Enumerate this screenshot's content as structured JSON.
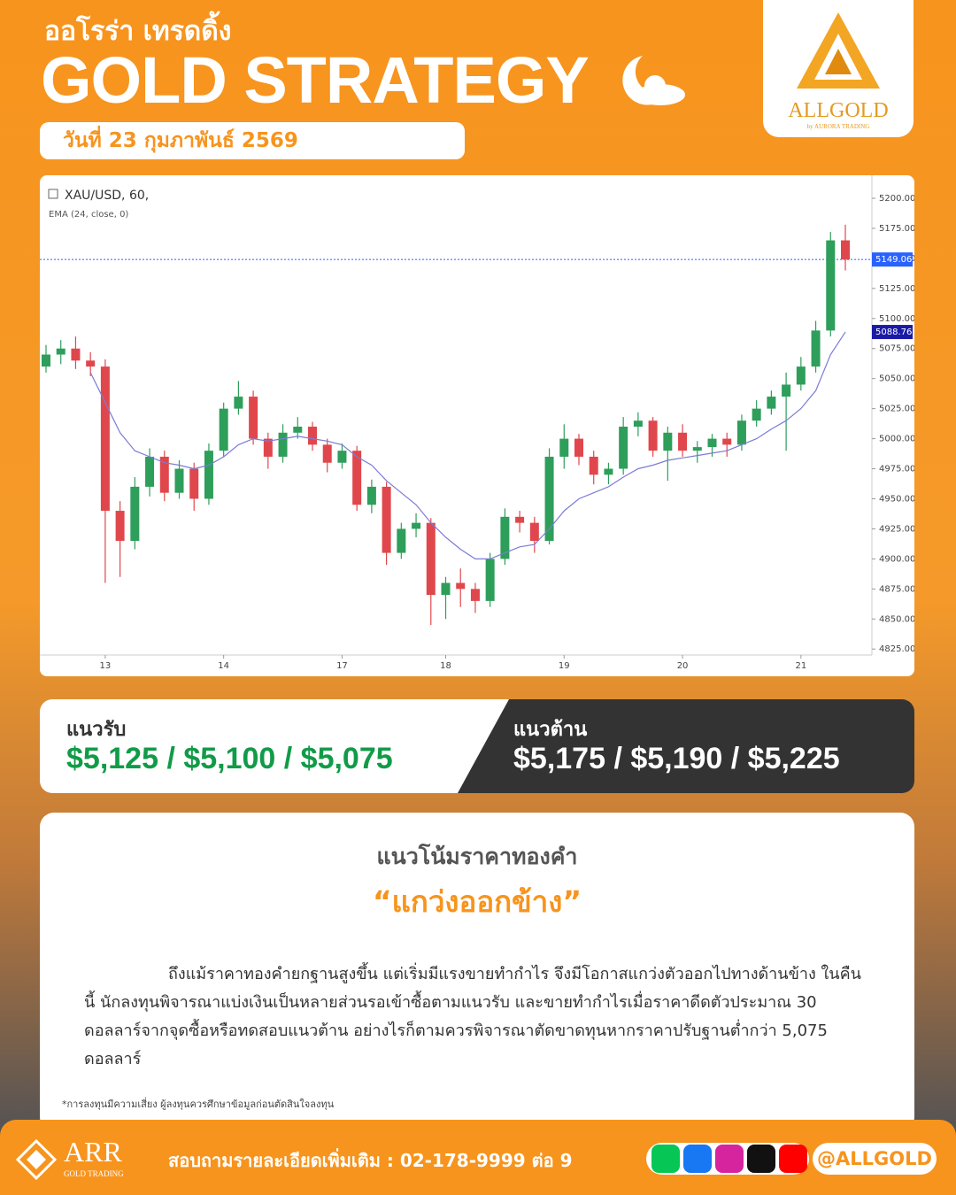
{
  "header": {
    "subtitle": "ออโรร่า เทรดดิ้ง",
    "title": "GOLD STRATEGY",
    "date": "วันที่ 23 กุมภาพันธ์ 2569"
  },
  "logo": {
    "name": "ALLGOLD",
    "tagline": "by AURORA TRADING"
  },
  "chart_data": {
    "type": "candlestick",
    "title": "XAU/USD, 60,",
    "categories": [
      null,
      null,
      null,
      null,
      "13",
      null,
      null,
      null,
      null,
      null,
      null,
      null,
      "14",
      null,
      null,
      null,
      null,
      null,
      null,
      null,
      "17",
      null,
      null,
      null,
      null,
      null,
      null,
      "18",
      null,
      null,
      null,
      null,
      null,
      null,
      null,
      "19",
      null,
      null,
      null,
      null,
      null,
      null,
      null,
      "20",
      null,
      null,
      null,
      null,
      null,
      null,
      null,
      "21",
      null,
      null,
      null
    ],
    "open": [
      5060,
      5070,
      5075,
      5065,
      5060,
      4940,
      4915,
      4960,
      4985,
      4955,
      4975,
      4950,
      4990,
      5025,
      5035,
      5000,
      4985,
      5005,
      5010,
      4995,
      4980,
      4990,
      4945,
      4960,
      4905,
      4925,
      4930,
      4870,
      4880,
      4875,
      4865,
      4900,
      4935,
      4930,
      4915,
      4985,
      5000,
      4985,
      4970,
      4975,
      5010,
      5015,
      4990,
      5005,
      4990,
      4993,
      5000,
      4995,
      5015,
      5025,
      5035,
      5045,
      5060,
      5090,
      5165
    ],
    "high": [
      5078,
      5082,
      5085,
      5072,
      5066,
      4948,
      4968,
      4992,
      4990,
      4982,
      4980,
      4996,
      5030,
      5048,
      5040,
      5005,
      5012,
      5018,
      5014,
      5000,
      4996,
      4994,
      4966,
      4964,
      4930,
      4938,
      4934,
      4885,
      4892,
      4880,
      4905,
      4942,
      4940,
      4935,
      4992,
      5012,
      5004,
      4990,
      4980,
      5018,
      5022,
      5018,
      5010,
      5012,
      4998,
      5004,
      5005,
      5020,
      5032,
      5040,
      5055,
      5068,
      5098,
      5172,
      5178
    ],
    "low": [
      5055,
      5062,
      5058,
      5052,
      4880,
      4885,
      4908,
      4952,
      4948,
      4950,
      4940,
      4945,
      4985,
      5020,
      4995,
      4975,
      4980,
      5000,
      4990,
      4972,
      4975,
      4940,
      4938,
      4895,
      4900,
      4918,
      4845,
      4850,
      4860,
      4855,
      4860,
      4895,
      4922,
      4905,
      4912,
      4975,
      4978,
      4962,
      4962,
      4970,
      5002,
      4985,
      4965,
      4985,
      4980,
      4985,
      4985,
      4990,
      5010,
      5020,
      4990,
      5040,
      5055,
      5085,
      5140
    ],
    "close": [
      5070,
      5075,
      5065,
      5060,
      4940,
      4915,
      4960,
      4985,
      4955,
      4975,
      4950,
      4990,
      5025,
      5035,
      5000,
      4985,
      5005,
      5010,
      4995,
      4980,
      4990,
      4945,
      4960,
      4905,
      4925,
      4930,
      4870,
      4880,
      4875,
      4865,
      4900,
      4935,
      4930,
      4915,
      4985,
      5000,
      4985,
      4970,
      4975,
      5010,
      5015,
      4990,
      5005,
      4990,
      4993,
      5000,
      4995,
      5015,
      5025,
      5035,
      5045,
      5060,
      5090,
      5165,
      5149.06
    ],
    "up_color": "#2e9e5b",
    "down_color": "#e0474c",
    "ema": {
      "name": "EMA (24, close, 0)",
      "color": "#7b7bd6",
      "values": [
        null,
        null,
        null,
        5055,
        5030,
        5005,
        4990,
        4985,
        4980,
        4978,
        4975,
        4978,
        4985,
        4995,
        5000,
        4998,
        5000,
        5002,
        5000,
        4998,
        4995,
        4985,
        4978,
        4965,
        4955,
        4945,
        4930,
        4918,
        4908,
        4900,
        4900,
        4905,
        4910,
        4912,
        4925,
        4940,
        4950,
        4955,
        4960,
        4968,
        4975,
        4978,
        4982,
        4984,
        4986,
        4988,
        4990,
        4995,
        5000,
        5008,
        5015,
        5025,
        5040,
        5070,
        5088.76
      ],
      "label": 5088.76,
      "label_color": "#1a1aa6"
    },
    "price_line": {
      "value": 5149.06,
      "color": "#2962ff"
    },
    "ylim": [
      4820,
      5214
    ],
    "yticks": [
      {
        "value": 5200,
        "label": "5200.00"
      },
      {
        "value": 5175,
        "label": "5175.00"
      },
      {
        "value": 5150,
        "label": "5150.00"
      },
      {
        "value": 5125,
        "label": "5125.00"
      },
      {
        "value": 5100,
        "label": "5100.00"
      },
      {
        "value": 5075,
        "label": "5075.00"
      },
      {
        "value": 5050,
        "label": "5050.00"
      },
      {
        "value": 5025,
        "label": "5025.00"
      },
      {
        "value": 5000,
        "label": "5000.00"
      },
      {
        "value": 4975,
        "label": "4975.00"
      },
      {
        "value": 4950,
        "label": "4950.00"
      },
      {
        "value": 4925,
        "label": "4925.00"
      },
      {
        "value": 4900,
        "label": "4900.00"
      },
      {
        "value": 4875,
        "label": "4875.00"
      },
      {
        "value": 4850,
        "label": "4850.00"
      },
      {
        "value": 4825,
        "label": "4825.00"
      }
    ]
  },
  "levels": {
    "support": {
      "label": "แนวรับ",
      "values": "$5,125 / $5,100 / $5,075"
    },
    "resistance": {
      "label": "แนวต้าน",
      "values": "$5,175 / $5,190 / $5,225"
    }
  },
  "trend": {
    "heading": "แนวโน้มราคาทองคำ",
    "value": "“แกว่งออกข้าง”",
    "body": "ถึงแม้ราคาทองคำยกฐานสูงขึ้น แต่เริ่มมีแรงขายทำกำไร จึงมีโอกาสแกว่งตัวออกไปทางด้านข้าง ในคืนนี้ นักลงทุนพิจารณาแบ่งเงินเป็นหลายส่วนรอเข้าซื้อตามแนวรับ และขายทำกำไรเมื่อราคาดีดตัวประมาณ 30 ดอลลาร์จากจุดซื้อหรือทดสอบแนวต้าน  อย่างไรก็ตามควรพิจารณาตัดขาดทุนหากราคาปรับฐานต่ำกว่า 5,075 ดอลลาร์",
    "disclaimer": "*การลงทุนมีความเสี่ยง ผู้ลงทุนควรศึกษาข้อมูลก่อนตัดสินใจลงทุน"
  },
  "footer": {
    "brand": "ARR",
    "brand_sub": "GOLD TRADING",
    "contact": "สอบถามรายละเอียดเพิ่มเติม : 02-178-9999 ต่อ 9",
    "handle": "@ALLGOLD"
  }
}
